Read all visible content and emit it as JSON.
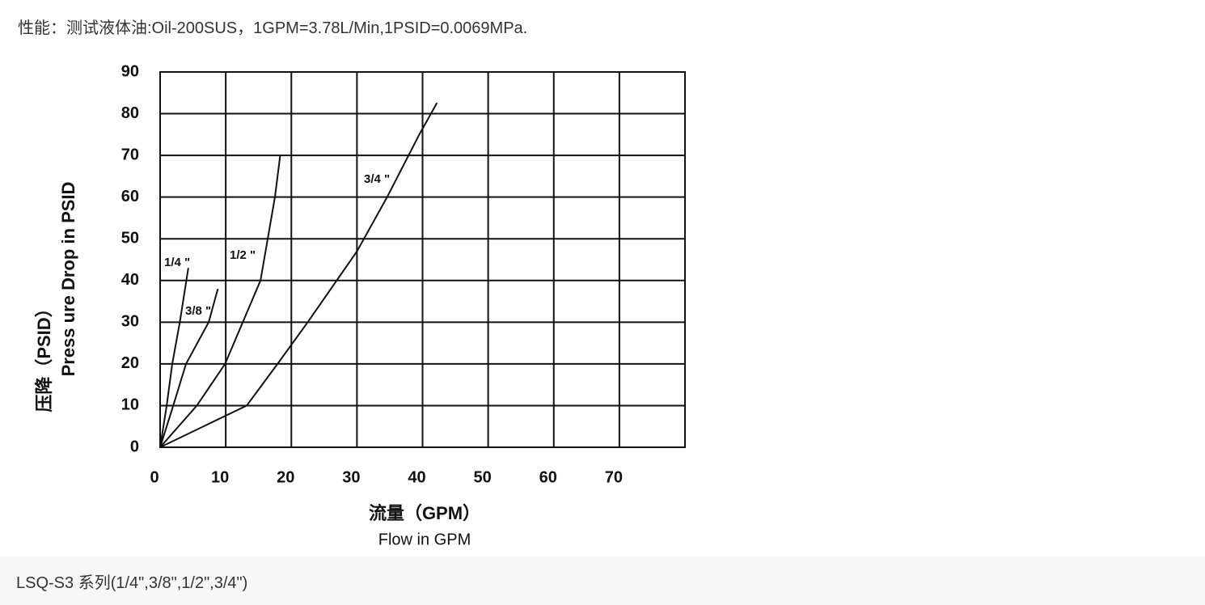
{
  "header": "性能：测试液体油:Oil-200SUS，1GPM=3.78L/Min,1PSID=0.0069MPa.",
  "chart_data": {
    "type": "line",
    "y_label": [
      "压降（PSID）",
      "Press ure Drop in PSID"
    ],
    "x_label": [
      "流量（GPM）",
      "Flow in GPM"
    ],
    "xlim": [
      0,
      80
    ],
    "xticks": [
      0,
      10,
      20,
      30,
      40,
      50,
      60,
      70
    ],
    "ylim": [
      0,
      90
    ],
    "yticks": [
      0,
      10,
      20,
      30,
      40,
      50,
      60,
      70,
      80,
      90
    ],
    "grid": true,
    "series": [
      {
        "name": "1/4 \"",
        "color": "#111111",
        "x": [
          0,
          1,
          1.85,
          3,
          4,
          4.3
        ],
        "values": [
          0,
          10,
          20,
          30,
          40,
          43
        ]
      },
      {
        "name": "3/8 \"",
        "color": "#111111",
        "x": [
          0,
          2,
          3.95,
          7.4,
          8.8
        ],
        "values": [
          0,
          10,
          20,
          30,
          38
        ]
      },
      {
        "name": "1/2 \"",
        "color": "#111111",
        "x": [
          0,
          5.6,
          9.9,
          15.3,
          17.5,
          18.3
        ],
        "values": [
          0,
          10,
          20,
          40,
          60,
          70
        ]
      },
      {
        "name": "3/4 \"",
        "color": "#111111",
        "x": [
          0,
          13.2,
          17.9,
          22.5,
          30,
          34.6,
          39.5,
          42.2
        ],
        "values": [
          0,
          10,
          20,
          30,
          47,
          60,
          75,
          82.6
        ]
      }
    ]
  },
  "caption": "LSQ-S3 系列(1/4\",3/8\",1/2\",3/4\")"
}
